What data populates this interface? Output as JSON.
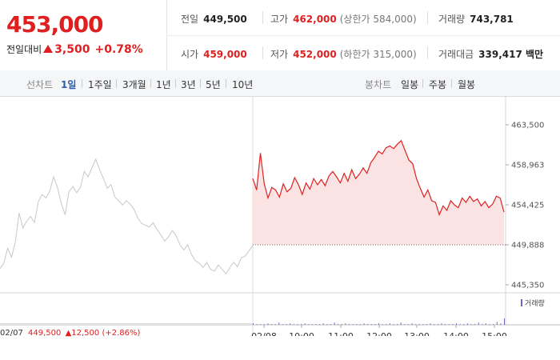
{
  "quote": {
    "price": "453,000",
    "change_label": "전일대비",
    "change_amount": "3,500",
    "change_percent": "+0.78%"
  },
  "stats": {
    "prev_close": {
      "label": "전일",
      "value": "449,500"
    },
    "high": {
      "label": "고가",
      "value": "462,000",
      "sub": "(상한가 584,000)"
    },
    "volume": {
      "label": "거래량",
      "value": "743,781"
    },
    "open": {
      "label": "시가",
      "value": "459,000"
    },
    "low": {
      "label": "저가",
      "value": "452,000",
      "sub": "(하한가 315,000)"
    },
    "trade_value": {
      "label": "거래대금",
      "value": "339,417 백만"
    }
  },
  "period_tabs": {
    "label": "선차트",
    "items": [
      "1일",
      "1주일",
      "3개월",
      "1년",
      "3년",
      "5년",
      "10년"
    ],
    "active": "1일"
  },
  "candle_tabs": {
    "label": "봉차트",
    "items": [
      "일봉",
      "주봉",
      "월봉"
    ]
  },
  "footer": {
    "prev_date": "02/07",
    "prev_price": "449,500",
    "prev_change": "12,500",
    "prev_pct": "(+2.86%)"
  },
  "volume_legend": "거래량",
  "colors": {
    "up": "#e02020",
    "prev_line": "#c8c8c8",
    "fill": "#fbe3e3",
    "volume": "#7a5fc0",
    "accent": "#2a5db0"
  },
  "chart_data": {
    "type": "line",
    "ylim": [
      445350,
      463500
    ],
    "y_ticks": [
      "463,500",
      "458,963",
      "454,425",
      "449,888",
      "445,350"
    ],
    "x_labels": [
      "02/08",
      "10:00",
      "11:00",
      "12:00",
      "13:00",
      "14:00",
      "15:00"
    ],
    "reference_price": 449888,
    "series": [
      {
        "values": [
          447200,
          447800,
          449500,
          448500,
          450200,
          453500,
          451800,
          452600,
          453100,
          452400,
          454800,
          455600,
          455200,
          456000,
          457600,
          456400,
          454600,
          453300,
          455900,
          456500,
          455800,
          456400,
          458200,
          457600,
          458600,
          459600,
          458400,
          457400,
          456300,
          456700,
          455300,
          454900,
          454400,
          454900,
          454500,
          453900,
          452900,
          452300,
          452100,
          451900,
          452400,
          451600,
          451000,
          450300,
          450800,
          451500,
          450900,
          449900,
          449300,
          449900,
          448800,
          448100,
          447800,
          447300,
          447900,
          447100,
          446900,
          447600,
          447100,
          446600,
          447300,
          447900,
          447400,
          448400,
          448600,
          449200,
          449800
        ]
      },
      {
        "values": [
          457400,
          456100,
          460300,
          456800,
          455200,
          456400,
          456100,
          455300,
          456800,
          455900,
          456300,
          457500,
          456700,
          455600,
          456900,
          456200,
          457400,
          456700,
          457300,
          456600,
          457700,
          458200,
          457600,
          456900,
          458000,
          457100,
          458400,
          457400,
          457900,
          458600,
          458000,
          459200,
          459800,
          460500,
          460200,
          460900,
          461100,
          460800,
          461300,
          461700,
          460600,
          459500,
          459100,
          457400,
          456300,
          455300,
          456100,
          454900,
          454700,
          453300,
          454300,
          453800,
          454900,
          454400,
          454100,
          455200,
          454700,
          455400,
          454800,
          455100,
          454300,
          454800,
          454100,
          454500,
          455400,
          455200,
          453600
        ]
      }
    ],
    "volume": [
      2,
      1,
      1,
      1,
      2,
      1,
      1,
      3,
      1,
      1,
      2,
      1,
      1,
      1,
      2,
      1,
      1,
      1,
      1,
      2,
      1,
      1,
      3,
      1,
      1,
      2,
      1,
      1,
      1,
      1,
      2,
      1,
      1,
      1,
      2,
      1,
      1,
      2,
      1,
      1,
      3,
      1,
      1,
      2,
      1,
      1,
      1,
      1,
      2,
      1,
      1,
      2,
      1,
      1,
      1,
      2,
      1,
      1,
      2,
      1,
      1,
      3,
      1,
      2,
      1,
      1,
      4,
      2,
      9
    ]
  }
}
